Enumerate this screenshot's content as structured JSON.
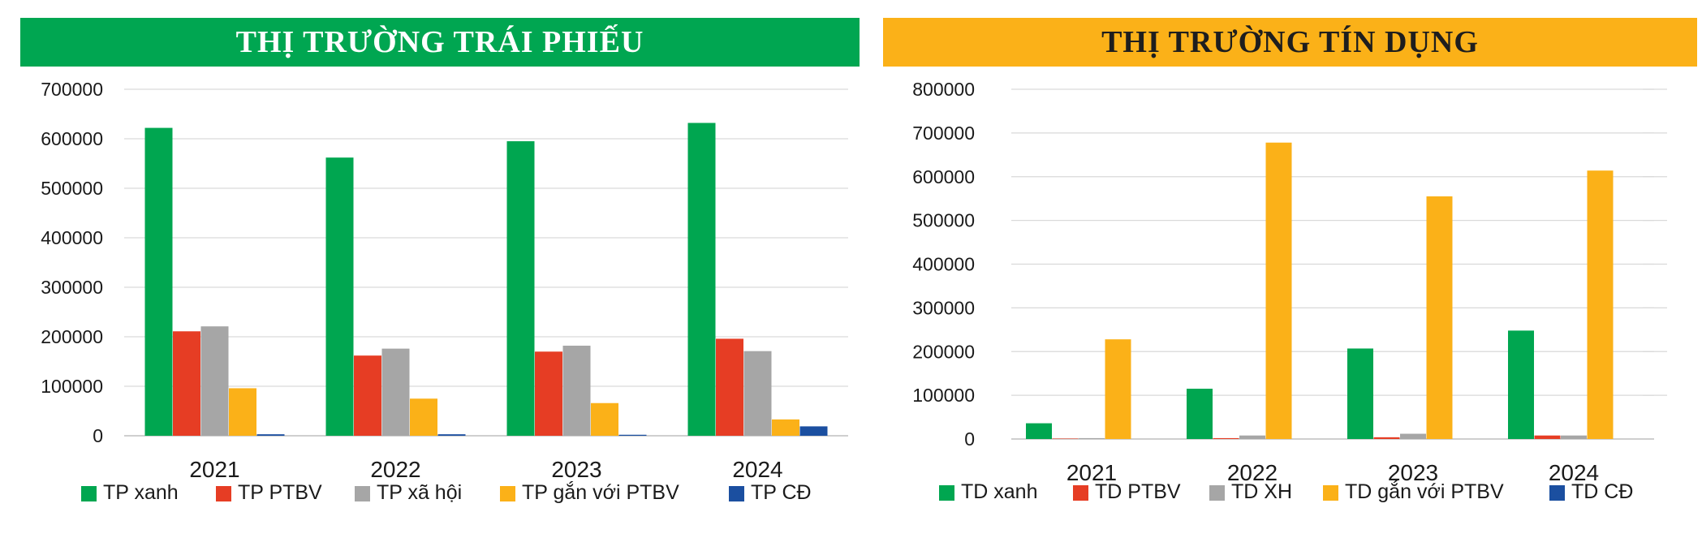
{
  "chart_data": [
    {
      "type": "bar",
      "title": "THỊ TRƯỜNG TRÁI PHIẾU",
      "title_bg": "#00a651",
      "title_color": "#ffffff",
      "categories": [
        "2021",
        "2022",
        "2023",
        "2024"
      ],
      "ylim": [
        0,
        700000
      ],
      "yticks": [
        0,
        100000,
        200000,
        300000,
        400000,
        500000,
        600000,
        700000
      ],
      "grid": true,
      "legend_position": "bottom",
      "series": [
        {
          "name": "TP xanh",
          "color": "#00a650",
          "values": [
            622000,
            562000,
            595000,
            632000
          ]
        },
        {
          "name": "TP PTBV",
          "color": "#e63d24",
          "values": [
            211000,
            162000,
            170000,
            196000
          ]
        },
        {
          "name": "TP xã hội",
          "color": "#a6a6a6",
          "values": [
            221000,
            176000,
            182000,
            171000
          ]
        },
        {
          "name": "TP gắn với PTBV",
          "color": "#fbb118",
          "values": [
            96000,
            75000,
            66000,
            33000
          ]
        },
        {
          "name": "TP CĐ",
          "color": "#1b4fa0",
          "values": [
            3000,
            3000,
            2000,
            19000
          ]
        }
      ]
    },
    {
      "type": "bar",
      "title": "THỊ TRƯỜNG TÍN DỤNG",
      "title_bg": "#fbb118",
      "title_color": "#1e1e1e",
      "categories": [
        "2021",
        "2022",
        "2023",
        "2024"
      ],
      "ylim": [
        0,
        800000
      ],
      "yticks": [
        0,
        100000,
        200000,
        300000,
        400000,
        500000,
        600000,
        700000,
        800000
      ],
      "grid": true,
      "legend_position": "bottom",
      "series": [
        {
          "name": "TD xanh",
          "color": "#00a650",
          "values": [
            36000,
            115000,
            207000,
            248000
          ]
        },
        {
          "name": "TD PTBV",
          "color": "#e63d24",
          "values": [
            1000,
            2000,
            4000,
            8000
          ]
        },
        {
          "name": "TD XH",
          "color": "#a6a6a6",
          "values": [
            2000,
            8000,
            12000,
            8000
          ]
        },
        {
          "name": "TD gắn với PTBV",
          "color": "#fbb118",
          "values": [
            228000,
            678000,
            555000,
            614000
          ]
        },
        {
          "name": "TD CĐ",
          "color": "#1b4fa0",
          "values": [
            0,
            0,
            0,
            0
          ]
        }
      ]
    }
  ]
}
